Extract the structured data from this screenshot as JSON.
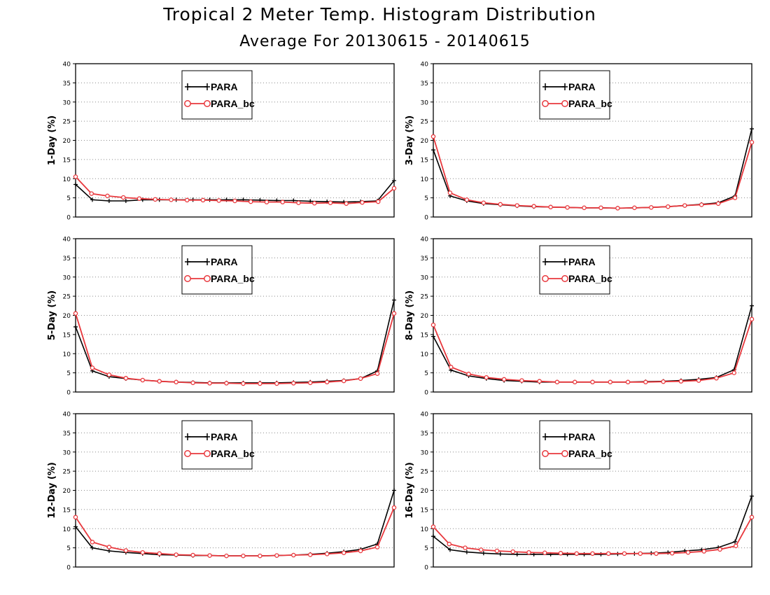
{
  "title": "Tropical 2 Meter Temp. Histogram Distribution",
  "subtitle": "Average For 20130615 - 20140615",
  "colors": {
    "para": "#000000",
    "para_bc": "#e8383d",
    "grid": "#8c8c8c"
  },
  "chart_data": [
    {
      "type": "line",
      "ylabel": "1-Day (%)",
      "ylim": [
        0,
        40
      ],
      "yticks": [
        "0",
        "5",
        "10",
        "15",
        "20",
        "25",
        "30",
        "35",
        "40"
      ],
      "grid": true,
      "legend": "top-center",
      "series": [
        {
          "name": "PARA",
          "values": [
            8.5,
            4.5,
            4.2,
            4.2,
            4.5,
            4.5,
            4.5,
            4.5,
            4.5,
            4.5,
            4.5,
            4.4,
            4.3,
            4.3,
            4.1,
            4.0,
            3.9,
            4.0,
            4.2,
            9.5
          ]
        },
        {
          "name": "PARA_bc",
          "values": [
            10.5,
            6.1,
            5.5,
            5.1,
            4.8,
            4.6,
            4.5,
            4.4,
            4.4,
            4.3,
            4.2,
            4.0,
            3.9,
            3.9,
            3.7,
            3.6,
            3.7,
            3.5,
            3.8,
            4.0,
            7.5
          ]
        }
      ]
    },
    {
      "type": "line",
      "ylabel": "3-Day (%)",
      "ylim": [
        0,
        40
      ],
      "yticks": [
        "0",
        "5",
        "10",
        "15",
        "20",
        "25",
        "30",
        "35",
        "40"
      ],
      "grid": true,
      "legend": "top-center",
      "series": [
        {
          "name": "PARA",
          "values": [
            17.5,
            5.5,
            4.2,
            3.5,
            3.2,
            2.9,
            2.7,
            2.6,
            2.5,
            2.4,
            2.4,
            2.3,
            2.4,
            2.5,
            2.7,
            3.0,
            3.3,
            3.7,
            5.5,
            23.0
          ]
        },
        {
          "name": "PARA_bc",
          "values": [
            21.0,
            6.3,
            4.5,
            3.7,
            3.3,
            3.0,
            2.8,
            2.6,
            2.5,
            2.4,
            2.4,
            2.3,
            2.4,
            2.5,
            2.7,
            3.0,
            3.2,
            3.5,
            5.0,
            19.5
          ]
        }
      ]
    },
    {
      "type": "line",
      "ylabel": "5-Day (%)",
      "ylim": [
        0,
        40
      ],
      "yticks": [
        "0",
        "5",
        "10",
        "15",
        "20",
        "25",
        "30",
        "35",
        "40"
      ],
      "grid": true,
      "legend": "top-center",
      "series": [
        {
          "name": "PARA",
          "values": [
            17.0,
            5.5,
            4.0,
            3.5,
            3.1,
            2.8,
            2.6,
            2.5,
            2.4,
            2.4,
            2.4,
            2.4,
            2.4,
            2.5,
            2.6,
            2.8,
            3.0,
            3.5,
            5.5,
            24.0
          ]
        },
        {
          "name": "PARA_bc",
          "values": [
            20.5,
            6.3,
            4.5,
            3.6,
            3.1,
            2.8,
            2.6,
            2.4,
            2.3,
            2.3,
            2.2,
            2.2,
            2.2,
            2.3,
            2.4,
            2.6,
            2.9,
            3.5,
            4.8,
            20.5
          ]
        }
      ]
    },
    {
      "type": "line",
      "ylabel": "8-Day (%)",
      "ylim": [
        0,
        40
      ],
      "yticks": [
        "0",
        "5",
        "10",
        "15",
        "20",
        "25",
        "30",
        "35",
        "40"
      ],
      "grid": true,
      "legend": "top-center",
      "series": [
        {
          "name": "PARA",
          "values": [
            14.5,
            5.7,
            4.2,
            3.5,
            3.0,
            2.8,
            2.6,
            2.6,
            2.6,
            2.6,
            2.6,
            2.6,
            2.7,
            2.8,
            3.0,
            3.3,
            3.8,
            5.8,
            22.5
          ]
        },
        {
          "name": "PARA_bc",
          "values": [
            17.5,
            6.5,
            4.7,
            3.8,
            3.3,
            3.0,
            2.8,
            2.6,
            2.6,
            2.6,
            2.6,
            2.6,
            2.6,
            2.7,
            2.8,
            3.0,
            3.6,
            5.0,
            19.0
          ]
        }
      ]
    },
    {
      "type": "line",
      "ylabel": "12-Day (%)",
      "ylim": [
        0,
        40
      ],
      "yticks": [
        "0",
        "5",
        "10",
        "15",
        "20",
        "25",
        "30",
        "35",
        "40"
      ],
      "grid": true,
      "legend": "top-center",
      "series": [
        {
          "name": "PARA",
          "values": [
            10.5,
            5.0,
            4.2,
            3.8,
            3.5,
            3.2,
            3.1,
            3.0,
            3.0,
            2.9,
            2.9,
            2.9,
            3.0,
            3.1,
            3.3,
            3.6,
            4.0,
            4.6,
            6.0,
            20.0
          ]
        },
        {
          "name": "PARA_bc",
          "values": [
            13.0,
            6.5,
            5.2,
            4.3,
            3.8,
            3.5,
            3.2,
            3.1,
            3.0,
            2.9,
            2.9,
            2.9,
            3.0,
            3.1,
            3.2,
            3.4,
            3.7,
            4.2,
            5.2,
            15.5
          ]
        }
      ]
    },
    {
      "type": "line",
      "ylabel": "16-Day (%)",
      "ylim": [
        0,
        40
      ],
      "yticks": [
        "0",
        "5",
        "10",
        "15",
        "20",
        "25",
        "30",
        "35",
        "40"
      ],
      "grid": true,
      "legend": "top-center",
      "series": [
        {
          "name": "PARA",
          "values": [
            8.0,
            4.5,
            3.9,
            3.6,
            3.4,
            3.3,
            3.3,
            3.3,
            3.3,
            3.3,
            3.3,
            3.4,
            3.5,
            3.6,
            3.8,
            4.2,
            4.5,
            5.1,
            6.6,
            18.5
          ]
        },
        {
          "name": "PARA_bc",
          "values": [
            10.5,
            6.0,
            5.0,
            4.5,
            4.2,
            4.0,
            3.8,
            3.7,
            3.6,
            3.5,
            3.5,
            3.5,
            3.5,
            3.5,
            3.5,
            3.6,
            3.8,
            4.1,
            4.6,
            5.5,
            13.0
          ]
        }
      ]
    }
  ]
}
